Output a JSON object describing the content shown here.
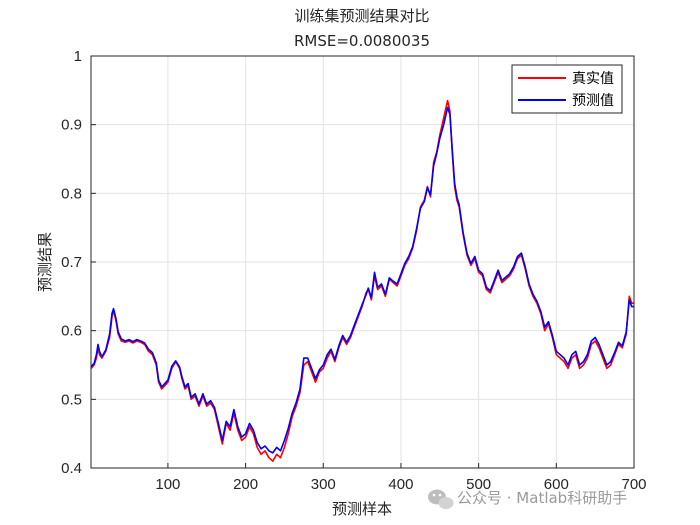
{
  "chart_data": {
    "type": "line",
    "title": "训练集预测结果对比",
    "subtitle": "RMSE=0.0080035",
    "xlabel": "预测样本",
    "ylabel": "预测结果",
    "xlim": [
      1,
      700
    ],
    "ylim": [
      0.4,
      1.0
    ],
    "xticks": [
      100,
      200,
      300,
      400,
      500,
      600,
      700
    ],
    "yticks": [
      0.4,
      0.5,
      0.6,
      0.7,
      0.8,
      0.9,
      1.0
    ],
    "ytick_labels": [
      "0.4",
      "0.5",
      "0.6",
      "0.7",
      "0.8",
      "0.9",
      "1"
    ],
    "grid": true,
    "legend_position": "top-right",
    "series": [
      {
        "name": "真实值",
        "color": "#ff0000",
        "points": [
          [
            1,
            0.545
          ],
          [
            5,
            0.55
          ],
          [
            8,
            0.56
          ],
          [
            10,
            0.575
          ],
          [
            12,
            0.565
          ],
          [
            15,
            0.56
          ],
          [
            20,
            0.57
          ],
          [
            25,
            0.59
          ],
          [
            28,
            0.62
          ],
          [
            30,
            0.63
          ],
          [
            33,
            0.615
          ],
          [
            36,
            0.595
          ],
          [
            40,
            0.585
          ],
          [
            45,
            0.583
          ],
          [
            50,
            0.585
          ],
          [
            55,
            0.582
          ],
          [
            60,
            0.585
          ],
          [
            65,
            0.583
          ],
          [
            70,
            0.58
          ],
          [
            75,
            0.57
          ],
          [
            80,
            0.565
          ],
          [
            85,
            0.55
          ],
          [
            88,
            0.525
          ],
          [
            92,
            0.515
          ],
          [
            96,
            0.52
          ],
          [
            100,
            0.525
          ],
          [
            105,
            0.545
          ],
          [
            110,
            0.555
          ],
          [
            115,
            0.545
          ],
          [
            118,
            0.53
          ],
          [
            122,
            0.515
          ],
          [
            126,
            0.52
          ],
          [
            130,
            0.5
          ],
          [
            135,
            0.505
          ],
          [
            140,
            0.49
          ],
          [
            145,
            0.505
          ],
          [
            150,
            0.49
          ],
          [
            155,
            0.495
          ],
          [
            160,
            0.485
          ],
          [
            165,
            0.46
          ],
          [
            170,
            0.435
          ],
          [
            175,
            0.465
          ],
          [
            180,
            0.455
          ],
          [
            185,
            0.48
          ],
          [
            190,
            0.455
          ],
          [
            195,
            0.44
          ],
          [
            200,
            0.445
          ],
          [
            205,
            0.46
          ],
          [
            210,
            0.45
          ],
          [
            215,
            0.43
          ],
          [
            220,
            0.42
          ],
          [
            225,
            0.425
          ],
          [
            230,
            0.415
          ],
          [
            235,
            0.41
          ],
          [
            240,
            0.42
          ],
          [
            245,
            0.415
          ],
          [
            250,
            0.43
          ],
          [
            255,
            0.45
          ],
          [
            260,
            0.475
          ],
          [
            265,
            0.49
          ],
          [
            270,
            0.51
          ],
          [
            275,
            0.55
          ],
          [
            280,
            0.555
          ],
          [
            285,
            0.54
          ],
          [
            290,
            0.525
          ],
          [
            295,
            0.54
          ],
          [
            300,
            0.545
          ],
          [
            305,
            0.56
          ],
          [
            310,
            0.57
          ],
          [
            315,
            0.555
          ],
          [
            320,
            0.575
          ],
          [
            325,
            0.59
          ],
          [
            330,
            0.58
          ],
          [
            335,
            0.59
          ],
          [
            340,
            0.605
          ],
          [
            345,
            0.62
          ],
          [
            350,
            0.635
          ],
          [
            355,
            0.655
          ],
          [
            358,
            0.66
          ],
          [
            362,
            0.645
          ],
          [
            366,
            0.68
          ],
          [
            370,
            0.66
          ],
          [
            375,
            0.665
          ],
          [
            380,
            0.65
          ],
          [
            385,
            0.675
          ],
          [
            390,
            0.67
          ],
          [
            395,
            0.665
          ],
          [
            400,
            0.68
          ],
          [
            405,
            0.695
          ],
          [
            410,
            0.705
          ],
          [
            415,
            0.72
          ],
          [
            420,
            0.745
          ],
          [
            425,
            0.78
          ],
          [
            430,
            0.79
          ],
          [
            434,
            0.81
          ],
          [
            438,
            0.795
          ],
          [
            442,
            0.845
          ],
          [
            446,
            0.86
          ],
          [
            450,
            0.885
          ],
          [
            455,
            0.91
          ],
          [
            460,
            0.935
          ],
          [
            463,
            0.92
          ],
          [
            466,
            0.86
          ],
          [
            469,
            0.81
          ],
          [
            472,
            0.79
          ],
          [
            475,
            0.78
          ],
          [
            480,
            0.74
          ],
          [
            485,
            0.71
          ],
          [
            490,
            0.695
          ],
          [
            495,
            0.705
          ],
          [
            500,
            0.685
          ],
          [
            505,
            0.68
          ],
          [
            510,
            0.66
          ],
          [
            515,
            0.655
          ],
          [
            520,
            0.67
          ],
          [
            525,
            0.685
          ],
          [
            530,
            0.67
          ],
          [
            535,
            0.675
          ],
          [
            540,
            0.68
          ],
          [
            545,
            0.69
          ],
          [
            550,
            0.705
          ],
          [
            555,
            0.71
          ],
          [
            560,
            0.69
          ],
          [
            565,
            0.665
          ],
          [
            570,
            0.65
          ],
          [
            575,
            0.64
          ],
          [
            580,
            0.625
          ],
          [
            585,
            0.6
          ],
          [
            590,
            0.61
          ],
          [
            595,
            0.59
          ],
          [
            600,
            0.565
          ],
          [
            605,
            0.56
          ],
          [
            610,
            0.555
          ],
          [
            615,
            0.545
          ],
          [
            620,
            0.56
          ],
          [
            625,
            0.565
          ],
          [
            630,
            0.545
          ],
          [
            635,
            0.55
          ],
          [
            640,
            0.56
          ],
          [
            645,
            0.58
          ],
          [
            650,
            0.585
          ],
          [
            655,
            0.575
          ],
          [
            660,
            0.56
          ],
          [
            665,
            0.545
          ],
          [
            670,
            0.55
          ],
          [
            675,
            0.565
          ],
          [
            680,
            0.58
          ],
          [
            685,
            0.575
          ],
          [
            690,
            0.595
          ],
          [
            694,
            0.65
          ],
          [
            697,
            0.64
          ],
          [
            700,
            0.64
          ]
        ]
      },
      {
        "name": "预测值",
        "color": "#0000ff",
        "points": [
          [
            1,
            0.548
          ],
          [
            5,
            0.552
          ],
          [
            8,
            0.565
          ],
          [
            10,
            0.58
          ],
          [
            12,
            0.57
          ],
          [
            15,
            0.562
          ],
          [
            20,
            0.572
          ],
          [
            25,
            0.595
          ],
          [
            28,
            0.625
          ],
          [
            30,
            0.632
          ],
          [
            33,
            0.618
          ],
          [
            36,
            0.598
          ],
          [
            40,
            0.588
          ],
          [
            45,
            0.585
          ],
          [
            50,
            0.587
          ],
          [
            55,
            0.584
          ],
          [
            60,
            0.587
          ],
          [
            65,
            0.585
          ],
          [
            70,
            0.582
          ],
          [
            75,
            0.573
          ],
          [
            80,
            0.568
          ],
          [
            85,
            0.553
          ],
          [
            88,
            0.528
          ],
          [
            92,
            0.518
          ],
          [
            96,
            0.523
          ],
          [
            100,
            0.528
          ],
          [
            105,
            0.548
          ],
          [
            110,
            0.556
          ],
          [
            115,
            0.547
          ],
          [
            118,
            0.533
          ],
          [
            122,
            0.518
          ],
          [
            126,
            0.523
          ],
          [
            130,
            0.503
          ],
          [
            135,
            0.508
          ],
          [
            140,
            0.493
          ],
          [
            145,
            0.508
          ],
          [
            150,
            0.493
          ],
          [
            155,
            0.498
          ],
          [
            160,
            0.488
          ],
          [
            165,
            0.465
          ],
          [
            170,
            0.44
          ],
          [
            175,
            0.468
          ],
          [
            180,
            0.46
          ],
          [
            185,
            0.485
          ],
          [
            190,
            0.46
          ],
          [
            195,
            0.445
          ],
          [
            200,
            0.45
          ],
          [
            205,
            0.465
          ],
          [
            210,
            0.455
          ],
          [
            215,
            0.437
          ],
          [
            220,
            0.428
          ],
          [
            225,
            0.432
          ],
          [
            230,
            0.425
          ],
          [
            235,
            0.422
          ],
          [
            240,
            0.43
          ],
          [
            245,
            0.425
          ],
          [
            250,
            0.44
          ],
          [
            255,
            0.458
          ],
          [
            260,
            0.48
          ],
          [
            265,
            0.495
          ],
          [
            270,
            0.515
          ],
          [
            275,
            0.56
          ],
          [
            280,
            0.56
          ],
          [
            285,
            0.545
          ],
          [
            290,
            0.53
          ],
          [
            295,
            0.543
          ],
          [
            300,
            0.55
          ],
          [
            305,
            0.565
          ],
          [
            310,
            0.573
          ],
          [
            315,
            0.558
          ],
          [
            320,
            0.578
          ],
          [
            325,
            0.593
          ],
          [
            330,
            0.583
          ],
          [
            335,
            0.593
          ],
          [
            340,
            0.608
          ],
          [
            345,
            0.623
          ],
          [
            350,
            0.638
          ],
          [
            355,
            0.652
          ],
          [
            358,
            0.662
          ],
          [
            362,
            0.648
          ],
          [
            366,
            0.685
          ],
          [
            370,
            0.663
          ],
          [
            375,
            0.668
          ],
          [
            380,
            0.653
          ],
          [
            385,
            0.677
          ],
          [
            390,
            0.672
          ],
          [
            395,
            0.668
          ],
          [
            400,
            0.683
          ],
          [
            405,
            0.698
          ],
          [
            410,
            0.708
          ],
          [
            415,
            0.722
          ],
          [
            420,
            0.748
          ],
          [
            425,
            0.778
          ],
          [
            430,
            0.788
          ],
          [
            434,
            0.808
          ],
          [
            438,
            0.798
          ],
          [
            442,
            0.84
          ],
          [
            446,
            0.858
          ],
          [
            450,
            0.88
          ],
          [
            455,
            0.9
          ],
          [
            460,
            0.925
          ],
          [
            463,
            0.915
          ],
          [
            466,
            0.865
          ],
          [
            469,
            0.815
          ],
          [
            472,
            0.795
          ],
          [
            475,
            0.783
          ],
          [
            480,
            0.743
          ],
          [
            485,
            0.713
          ],
          [
            490,
            0.698
          ],
          [
            495,
            0.708
          ],
          [
            500,
            0.688
          ],
          [
            505,
            0.683
          ],
          [
            510,
            0.663
          ],
          [
            515,
            0.658
          ],
          [
            520,
            0.673
          ],
          [
            525,
            0.688
          ],
          [
            530,
            0.673
          ],
          [
            535,
            0.678
          ],
          [
            540,
            0.683
          ],
          [
            545,
            0.693
          ],
          [
            550,
            0.708
          ],
          [
            555,
            0.713
          ],
          [
            560,
            0.693
          ],
          [
            565,
            0.668
          ],
          [
            570,
            0.653
          ],
          [
            575,
            0.643
          ],
          [
            580,
            0.628
          ],
          [
            585,
            0.605
          ],
          [
            590,
            0.613
          ],
          [
            595,
            0.593
          ],
          [
            600,
            0.57
          ],
          [
            605,
            0.565
          ],
          [
            610,
            0.56
          ],
          [
            615,
            0.55
          ],
          [
            620,
            0.565
          ],
          [
            625,
            0.57
          ],
          [
            630,
            0.55
          ],
          [
            635,
            0.555
          ],
          [
            640,
            0.565
          ],
          [
            645,
            0.585
          ],
          [
            650,
            0.59
          ],
          [
            655,
            0.58
          ],
          [
            660,
            0.565
          ],
          [
            665,
            0.55
          ],
          [
            670,
            0.555
          ],
          [
            675,
            0.568
          ],
          [
            680,
            0.583
          ],
          [
            685,
            0.578
          ],
          [
            690,
            0.598
          ],
          [
            694,
            0.645
          ],
          [
            697,
            0.635
          ],
          [
            700,
            0.635
          ]
        ]
      }
    ]
  },
  "watermark": {
    "text": "公众号 · Matlab科研助手",
    "icon": "wechat-icon"
  }
}
